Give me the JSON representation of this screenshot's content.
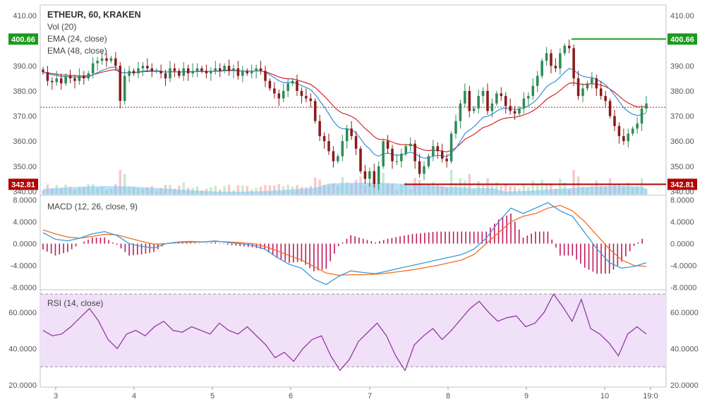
{
  "header": {
    "symbol": "ETHEUR, 60, KRAKEN",
    "vol": "Vol (20)",
    "ema24": "EMA (24, close)",
    "ema48": "EMA (48, close)",
    "macd": "MACD (12, 26, close, 9)",
    "rsi": "RSI (14, close)"
  },
  "markers": {
    "high_label": "400.66",
    "low_label": "342.81",
    "high_color": "#1b9a1b",
    "low_color": "#b30000"
  },
  "colors": {
    "up": "#2e8b57",
    "down": "#8b1a1a",
    "ema24": "#3a8fd6",
    "ema48": "#d62728",
    "macd": "#3a9ad9",
    "signal": "#f07020",
    "hist": "#c2185b",
    "rsi": "#8e2c9e",
    "rsi_band": "#f0e0f8"
  },
  "chart_data": [
    {
      "type": "candlestick",
      "title": "ETHEUR, 60, KRAKEN",
      "x_ticks": [
        "3",
        "4",
        "5",
        "6",
        "7",
        "8",
        "9",
        "10",
        "19:0"
      ],
      "y_ticks": [
        "410.00",
        "400.00",
        "390.00",
        "380.00",
        "370.00",
        "360.00",
        "350.00",
        "340.00"
      ],
      "ylim": [
        339,
        412
      ],
      "last_close_line": 373.5,
      "high_line": 400.66,
      "low_line": 342.81,
      "close": [
        387.5,
        384,
        383.5,
        385,
        383,
        386,
        385,
        384,
        386,
        385,
        387,
        391,
        392,
        393,
        392,
        393,
        390,
        376,
        386,
        388,
        387,
        389,
        390,
        389,
        388,
        388,
        387,
        385,
        389,
        388,
        386,
        389,
        387,
        388,
        389,
        388,
        387,
        388,
        389,
        388,
        390,
        388,
        389,
        386,
        388,
        387,
        388,
        389,
        388,
        384,
        381,
        379,
        377,
        380,
        383,
        384,
        380,
        378,
        377,
        376,
        368,
        362,
        360,
        356,
        352,
        354,
        360,
        365,
        362,
        357,
        348,
        345,
        348,
        343,
        350,
        360,
        357,
        352,
        352,
        355,
        358,
        359,
        352,
        347,
        350,
        354,
        358,
        356,
        353,
        352,
        363,
        368,
        375,
        380,
        372,
        373,
        378,
        380,
        372,
        375,
        379,
        378,
        374,
        372,
        371,
        373,
        377,
        378,
        382,
        386,
        392,
        395,
        390,
        389,
        395,
        398,
        397,
        385,
        378,
        381,
        383,
        385,
        381,
        378,
        376,
        370,
        366,
        362,
        360,
        363,
        365,
        367,
        373,
        375
      ]
    },
    {
      "type": "bar",
      "title": "Vol (20)"
    },
    {
      "type": "line",
      "title": "MACD (12, 26, close, 9)",
      "y_ticks": [
        "8.0000",
        "4.0000",
        "0.0000",
        "-4.0000",
        "-8.0000"
      ],
      "ylim": [
        -8.2,
        8.2
      ],
      "series": [
        {
          "name": "MACD",
          "values": [
            2,
            0.8,
            0.5,
            1,
            1.8,
            2.2,
            1.5,
            0,
            -0.5,
            -0.8,
            0,
            0.3,
            0.4,
            0.3,
            0.5,
            0.2,
            0,
            -0.3,
            -1,
            -2.5,
            -3.8,
            -4.5,
            -6.5,
            -7.5,
            -6,
            -5,
            -5.3,
            -5.5,
            -5,
            -4.5,
            -4,
            -3.5,
            -3,
            -2.5,
            -2,
            -1,
            1,
            4,
            6.5,
            5.5,
            6.5,
            7.5,
            6,
            5,
            2,
            -1,
            -3.5,
            -4.5,
            -4.2,
            -3.5
          ]
        },
        {
          "name": "Signal",
          "values": [
            2.5,
            1.8,
            1.2,
            1,
            1.3,
            1.7,
            1.6,
            1,
            0.4,
            -0.1,
            0,
            0.2,
            0.3,
            0.3,
            0.4,
            0.3,
            0.2,
            0,
            -0.5,
            -1.3,
            -2.2,
            -3,
            -4.2,
            -5.4,
            -5.8,
            -5.7,
            -5.7,
            -5.6,
            -5.4,
            -5.1,
            -4.8,
            -4.4,
            -4,
            -3.5,
            -3,
            -2,
            0,
            2,
            4,
            5,
            5.5,
            6.5,
            7,
            6,
            4,
            1.5,
            -1,
            -3,
            -4,
            -4.2
          ]
        }
      ]
    },
    {
      "type": "line",
      "title": "RSI (14, close)",
      "y_ticks": [
        "60.0000",
        "40.0000",
        "20.0000"
      ],
      "ylim": [
        20,
        70
      ],
      "series": [
        {
          "name": "RSI",
          "values": [
            50,
            47,
            48,
            52,
            57,
            62,
            55,
            45,
            40,
            48,
            50,
            47,
            52,
            55,
            50,
            49,
            52,
            50,
            48,
            54,
            50,
            48,
            52,
            47,
            42,
            35,
            38,
            33,
            40,
            45,
            47,
            36,
            28,
            34,
            44,
            49,
            54,
            47,
            36,
            28,
            42,
            47,
            51,
            45,
            50,
            56,
            62,
            66,
            60,
            55,
            57,
            58,
            52,
            54,
            60,
            70,
            63,
            55,
            67,
            51,
            48,
            43,
            36,
            48,
            52,
            48
          ]
        }
      ]
    }
  ]
}
